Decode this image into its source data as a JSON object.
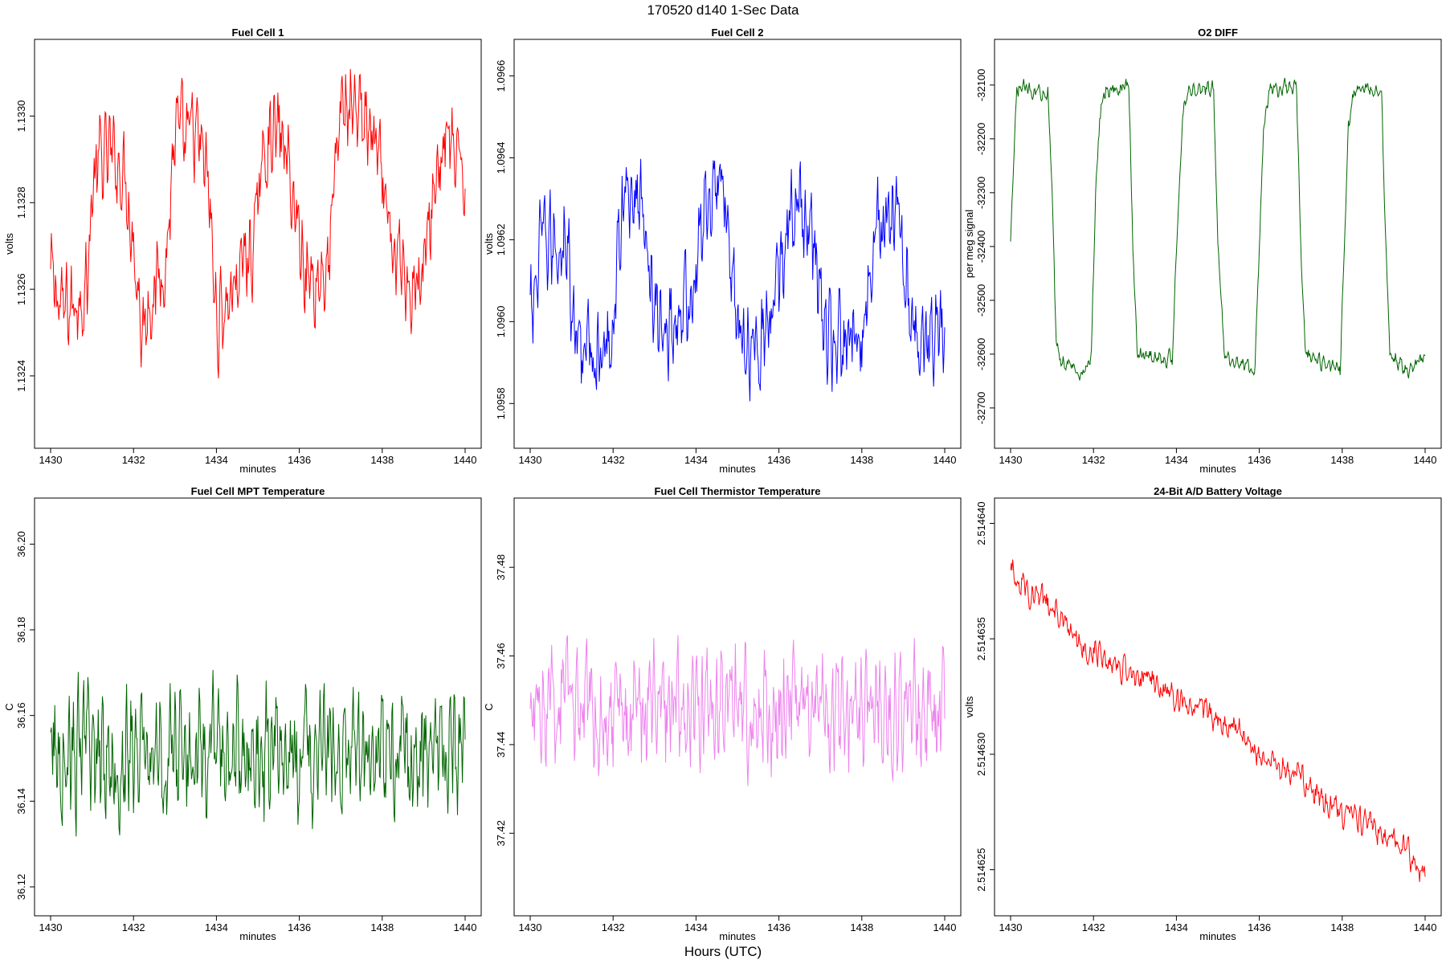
{
  "figure": {
    "main_title": "170520   d140   1-Sec Data",
    "bottom_label": "Hours (UTC)"
  },
  "chart_data": [
    {
      "type": "line",
      "title": "Fuel Cell 1",
      "xlabel": "minutes",
      "ylabel": "volts",
      "color": "#ff0000",
      "xlim": [
        1430,
        1440
      ],
      "ylim": [
        1.13227,
        1.13314
      ],
      "x_ticks": [
        1430,
        1432,
        1434,
        1436,
        1438,
        1440
      ],
      "y_ticks": [
        1.1324,
        1.1326,
        1.1328,
        1.133
      ],
      "y_tick_labels": [
        "1.1324",
        "1.1326",
        "1.1328",
        "1.1330"
      ],
      "x": [
        1430.0,
        1430.3,
        1430.6,
        1430.9,
        1431.0,
        1431.2,
        1431.5,
        1431.8,
        1432.0,
        1432.2,
        1432.4,
        1432.6,
        1432.8,
        1433.0,
        1433.2,
        1433.5,
        1433.8,
        1434.0,
        1434.3,
        1434.6,
        1434.9,
        1435.1,
        1435.3,
        1435.6,
        1435.9,
        1436.2,
        1436.4,
        1436.7,
        1437.0,
        1437.3,
        1437.6,
        1437.9,
        1438.2,
        1438.5,
        1438.8,
        1439.0,
        1439.3,
        1439.6,
        1439.8,
        1440.0
      ],
      "values": [
        1.13263,
        1.13255,
        1.13257,
        1.13262,
        1.13283,
        1.1329,
        1.13291,
        1.13286,
        1.13272,
        1.1325,
        1.13258,
        1.13262,
        1.13268,
        1.13297,
        1.13294,
        1.13296,
        1.13285,
        1.13252,
        1.13258,
        1.13265,
        1.1327,
        1.13289,
        1.13297,
        1.13295,
        1.13278,
        1.13263,
        1.13262,
        1.13265,
        1.13302,
        1.13303,
        1.13299,
        1.1329,
        1.13269,
        1.13265,
        1.13261,
        1.13264,
        1.13287,
        1.13296,
        1.13287,
        1.13287
      ],
      "noise": 0.00012
    },
    {
      "type": "line",
      "title": "Fuel Cell 2",
      "xlabel": "minutes",
      "ylabel": "volts",
      "color": "#0000ff",
      "xlim": [
        1430,
        1440
      ],
      "ylim": [
        1.09573,
        1.09665
      ],
      "x_ticks": [
        1430,
        1432,
        1434,
        1436,
        1438,
        1440
      ],
      "y_ticks": [
        1.0958,
        1.096,
        1.0962,
        1.0964,
        1.0966
      ],
      "y_tick_labels": [
        "1.0958",
        "1.0960",
        "1.0962",
        "1.0964",
        "1.0966"
      ],
      "x": [
        1430.0,
        1430.3,
        1430.6,
        1430.9,
        1431.0,
        1431.2,
        1431.5,
        1431.8,
        1432.0,
        1432.2,
        1432.5,
        1432.8,
        1433.0,
        1433.3,
        1433.6,
        1433.9,
        1434.2,
        1434.5,
        1434.8,
        1435.0,
        1435.3,
        1435.6,
        1435.9,
        1436.2,
        1436.5,
        1436.8,
        1437.1,
        1437.4,
        1437.7,
        1438.0,
        1438.3,
        1438.6,
        1438.9,
        1439.2,
        1439.5,
        1439.8,
        1440.0
      ],
      "values": [
        1.096,
        1.0962,
        1.09618,
        1.09622,
        1.096,
        1.09594,
        1.09592,
        1.0959,
        1.096,
        1.09628,
        1.09632,
        1.09625,
        1.096,
        1.09598,
        1.09602,
        1.09605,
        1.09628,
        1.09635,
        1.09626,
        1.09598,
        1.09596,
        1.09597,
        1.09601,
        1.09624,
        1.09628,
        1.09622,
        1.09598,
        1.09594,
        1.09593,
        1.09596,
        1.0962,
        1.09623,
        1.09625,
        1.096,
        1.09598,
        1.09597,
        1.09598
      ],
      "noise": 0.00014
    },
    {
      "type": "line",
      "title": "O2 DIFF",
      "xlabel": "minutes",
      "ylabel": "per meg signal",
      "color": "#006400",
      "xlim": [
        1430,
        1440
      ],
      "ylim": [
        -32745,
        -32045
      ],
      "x_ticks": [
        1430,
        1432,
        1434,
        1436,
        1438,
        1440
      ],
      "y_ticks": [
        -32700,
        -32600,
        -32500,
        -32400,
        -32300,
        -32200,
        -32100
      ],
      "y_tick_labels": [
        "-32700",
        "-32600",
        "-32500",
        "-32400",
        "-32300",
        "-32200",
        "-32100"
      ],
      "x": [
        1430.0,
        1430.05,
        1430.15,
        1430.3,
        1430.6,
        1430.9,
        1431.0,
        1431.1,
        1431.2,
        1431.5,
        1431.8,
        1431.95,
        1432.05,
        1432.15,
        1432.25,
        1432.6,
        1432.85,
        1432.95,
        1433.05,
        1433.15,
        1433.5,
        1433.9,
        1434.0,
        1434.15,
        1434.25,
        1434.6,
        1434.9,
        1435.0,
        1435.15,
        1435.25,
        1435.6,
        1435.9,
        1436.0,
        1436.1,
        1436.25,
        1436.5,
        1436.9,
        1437.0,
        1437.1,
        1437.25,
        1437.6,
        1437.95,
        1438.05,
        1438.15,
        1438.3,
        1438.6,
        1438.95,
        1439.05,
        1439.15,
        1439.3,
        1439.6,
        1440.0
      ],
      "values": [
        -32400,
        -32290,
        -32110,
        -32105,
        -32110,
        -32110,
        -32300,
        -32580,
        -32610,
        -32625,
        -32635,
        -32600,
        -32300,
        -32160,
        -32110,
        -32105,
        -32100,
        -32400,
        -32590,
        -32600,
        -32605,
        -32610,
        -32400,
        -32160,
        -32110,
        -32105,
        -32110,
        -32400,
        -32590,
        -32605,
        -32615,
        -32625,
        -32400,
        -32180,
        -32110,
        -32105,
        -32105,
        -32400,
        -32590,
        -32610,
        -32620,
        -32625,
        -32400,
        -32180,
        -32110,
        -32105,
        -32110,
        -32400,
        -32600,
        -32610,
        -32630,
        -32610
      ],
      "noise": 18
    },
    {
      "type": "line",
      "title": "Fuel Cell MPT Temperature",
      "xlabel": "minutes",
      "ylabel": "C",
      "color": "#006400",
      "xlim": [
        1430,
        1440
      ],
      "ylim": [
        36.117,
        36.207
      ],
      "x_ticks": [
        1430,
        1432,
        1434,
        1436,
        1438,
        1440
      ],
      "y_ticks": [
        36.12,
        36.14,
        36.16,
        36.18,
        36.2
      ],
      "y_tick_labels": [
        "36.12",
        "36.14",
        "36.16",
        "36.18",
        "36.20"
      ],
      "x": [
        1430.0,
        1440.0
      ],
      "values": [
        36.151,
        36.151
      ],
      "noise": 0.018
    },
    {
      "type": "line",
      "title": "Fuel Cell Thermistor Temperature",
      "xlabel": "minutes",
      "ylabel": "C",
      "color": "#ee82ee",
      "xlim": [
        1430,
        1440
      ],
      "ylim": [
        37.405,
        37.492
      ],
      "x_ticks": [
        1430,
        1432,
        1434,
        1436,
        1438,
        1440
      ],
      "y_ticks": [
        37.42,
        37.44,
        37.46,
        37.48
      ],
      "y_tick_labels": [
        "37.42",
        "37.44",
        "37.46",
        "37.48"
      ],
      "x": [
        1430.0,
        1440.0
      ],
      "values": [
        37.448,
        37.448
      ],
      "noise": 0.016
    },
    {
      "type": "line",
      "title": "24-Bit A/D Battery Voltage",
      "xlabel": "minutes",
      "ylabel": "volts",
      "color": "#ff0000",
      "xlim": [
        1430,
        1440
      ],
      "ylim": [
        2.5146237,
        2.5146404
      ],
      "x_ticks": [
        1430,
        1432,
        1434,
        1436,
        1438,
        1440
      ],
      "y_ticks": [
        2.514625,
        2.51463,
        2.514635,
        2.51464
      ],
      "y_tick_labels": [
        "2.514625",
        "2.514630",
        "2.514635",
        "2.514640"
      ],
      "x": [
        1430.0,
        1430.5,
        1431.0,
        1431.5,
        1432.0,
        1432.5,
        1433.0,
        1433.5,
        1434.0,
        1434.5,
        1435.0,
        1435.5,
        1436.0,
        1436.5,
        1437.0,
        1437.5,
        1438.0,
        1438.5,
        1439.0,
        1439.5,
        1439.85,
        1440.0
      ],
      "values": [
        2.514638,
        2.514637,
        2.5146365,
        2.514635,
        2.5146345,
        2.514634,
        2.5146335,
        2.514633,
        2.5146325,
        2.514632,
        2.5146315,
        2.514631,
        2.51463,
        2.5146295,
        2.514629,
        2.514628,
        2.5146275,
        2.514627,
        2.5146265,
        2.514626,
        2.514625,
        2.514625
      ],
      "noise": 7e-07
    }
  ]
}
